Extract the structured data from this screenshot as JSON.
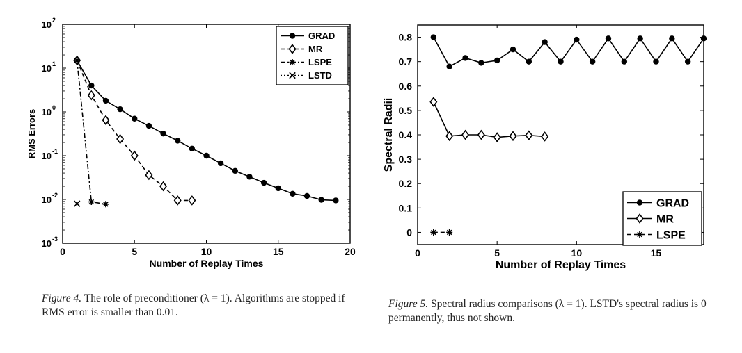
{
  "figures": [
    {
      "caption_label": "Figure 4.",
      "caption_text": "The role of preconditioner (λ = 1). Algorithms are stopped if RMS error is smaller than 0.01."
    },
    {
      "caption_label": "Figure 5.",
      "caption_text": "Spectral radius comparisons (λ = 1). LSTD's spectral radius is 0 permanently, thus not shown."
    }
  ],
  "chart_data": [
    {
      "type": "line",
      "title": "",
      "xlabel": "Number of Replay Times",
      "ylabel": "RMS Errors",
      "xlim": [
        0,
        20
      ],
      "yscale": "log",
      "ylim": [
        0.001,
        100
      ],
      "xticks": [
        0,
        5,
        10,
        15,
        20
      ],
      "xtick_labels": [
        "0",
        "5",
        "10",
        "15",
        "20"
      ],
      "yticks": [
        0.001,
        0.01,
        0.1,
        1,
        10,
        100
      ],
      "ytick_labels": [
        "10",
        "10",
        "10",
        "10",
        "10",
        "10"
      ],
      "ytick_exponents": [
        "-3",
        "-2",
        "-1",
        "0",
        "1",
        "2"
      ],
      "grid": false,
      "legend_position": "top-right",
      "series": [
        {
          "name": "GRAD",
          "line": "solid",
          "marker": "dot",
          "x": [
            1,
            2,
            3,
            4,
            5,
            6,
            7,
            8,
            9,
            10,
            11,
            12,
            13,
            14,
            15,
            16,
            17,
            18,
            19
          ],
          "y": [
            15,
            4,
            1.8,
            1.15,
            0.7,
            0.48,
            0.32,
            0.22,
            0.145,
            0.1,
            0.067,
            0.045,
            0.033,
            0.024,
            0.018,
            0.0135,
            0.012,
            0.0098,
            0.0095
          ]
        },
        {
          "name": "MR",
          "line": "dashed",
          "marker": "diamond",
          "x": [
            1,
            2,
            3,
            4,
            5,
            6,
            7,
            8,
            9
          ],
          "y": [
            15,
            2.4,
            0.65,
            0.24,
            0.1,
            0.036,
            0.02,
            0.0095,
            0.0095
          ]
        },
        {
          "name": "LSPE",
          "line": "dashdot",
          "marker": "star",
          "x": [
            1,
            2,
            3
          ],
          "y": [
            15,
            0.0088,
            0.0078
          ]
        },
        {
          "name": "LSTD",
          "line": "dotted",
          "marker": "x",
          "x": [
            1
          ],
          "y": [
            0.008
          ]
        }
      ]
    },
    {
      "type": "line",
      "title": "",
      "xlabel": "Number of Replay Times",
      "ylabel": "Spectral Radii",
      "xlim": [
        0,
        18
      ],
      "ylim": [
        -0.05,
        0.85
      ],
      "xticks": [
        0,
        5,
        10,
        15
      ],
      "xtick_labels": [
        "0",
        "5",
        "10",
        "15"
      ],
      "yticks": [
        0,
        0.1,
        0.2,
        0.3,
        0.4,
        0.5,
        0.6,
        0.7,
        0.8
      ],
      "ytick_labels": [
        "0",
        "0.1",
        "0.2",
        "0.3",
        "0.4",
        "0.5",
        "0.6",
        "0.7",
        "0.8"
      ],
      "grid": false,
      "legend_position": "bottom-right",
      "series": [
        {
          "name": "GRAD",
          "line": "solid",
          "marker": "dot",
          "x": [
            1,
            2,
            3,
            4,
            5,
            6,
            7,
            8,
            9,
            10,
            11,
            12,
            13,
            14,
            15,
            16,
            17,
            18
          ],
          "y": [
            0.8,
            0.68,
            0.715,
            0.695,
            0.705,
            0.75,
            0.7,
            0.78,
            0.7,
            0.79,
            0.7,
            0.795,
            0.7,
            0.795,
            0.7,
            0.795,
            0.7,
            0.795
          ]
        },
        {
          "name": "MR",
          "line": "solid",
          "marker": "diamond",
          "x": [
            1,
            2,
            3,
            4,
            5,
            6,
            7,
            8
          ],
          "y": [
            0.535,
            0.395,
            0.4,
            0.4,
            0.39,
            0.395,
            0.398,
            0.393
          ]
        },
        {
          "name": "LSPE",
          "line": "dashed",
          "marker": "star",
          "x": [
            1,
            2
          ],
          "y": [
            0,
            0
          ]
        }
      ]
    }
  ]
}
